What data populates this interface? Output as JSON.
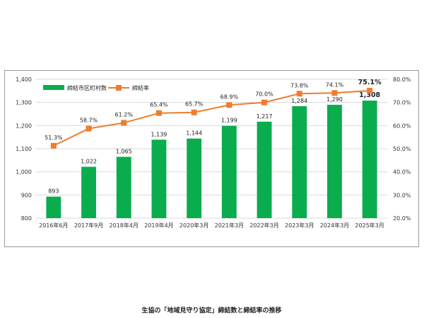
{
  "chart_data": {
    "type": "bar+line",
    "title": "生協の「地域見守り協定」締結数と締結率の推移",
    "categories": [
      "2016年6月",
      "2017年9月",
      "2018年4月",
      "2019年4月",
      "2020年3月",
      "2021年3月",
      "2022年3月",
      "2023年3月",
      "2024年3月",
      "2025年3月"
    ],
    "series": [
      {
        "name": "締結市区町村数",
        "type": "bar",
        "axis": "left",
        "color": "#0aad4e",
        "values": [
          893,
          1022,
          1065,
          1139,
          1144,
          1199,
          1217,
          1284,
          1290,
          1308
        ],
        "labels": [
          "893",
          "1,022",
          "1,065",
          "1,139",
          "1,144",
          "1,199",
          "1,217",
          "1,284",
          "1,290",
          "1,308"
        ]
      },
      {
        "name": "締結率",
        "type": "line",
        "axis": "right",
        "color": "#ed7d31",
        "values": [
          51.3,
          58.7,
          61.2,
          65.4,
          65.7,
          68.9,
          70.0,
          73.8,
          74.1,
          75.1
        ],
        "labels": [
          "51.3%",
          "58.7%",
          "61.2%",
          "65.4%",
          "65.7%",
          "68.9%",
          "70.0%",
          "73.8%",
          "74.1%",
          "75.1%"
        ]
      }
    ],
    "y_left": {
      "min": 800,
      "max": 1400,
      "ticks": [
        "800",
        "900",
        "1,000",
        "1,100",
        "1,200",
        "1,300",
        "1,400"
      ]
    },
    "y_right": {
      "min": 20,
      "max": 80,
      "ticks": [
        "20.0%",
        "30.0%",
        "40.0%",
        "50.0%",
        "60.0%",
        "70.0%",
        "80.0%"
      ]
    },
    "grid": true,
    "legend_position": "top-left",
    "highlight_last": true
  }
}
